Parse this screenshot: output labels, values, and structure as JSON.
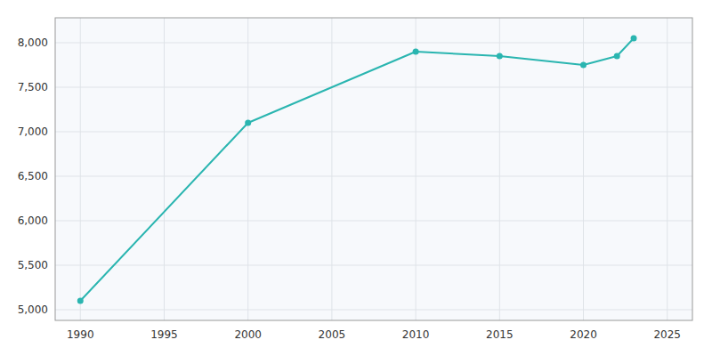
{
  "chart_data": {
    "type": "line",
    "x": [
      1990,
      2000,
      2010,
      2015,
      2020,
      2022,
      2023
    ],
    "values": [
      5100,
      7100,
      7900,
      7850,
      7750,
      7850,
      8050
    ],
    "color": "#2ab5b0",
    "marker": "circle",
    "xlim": [
      1988.5,
      2026.5
    ],
    "xticks": [
      1990,
      1995,
      2000,
      2005,
      2010,
      2015,
      2020,
      2025
    ],
    "ylim": [
      4880,
      8280
    ],
    "yticks": [
      {
        "value": 5000,
        "label": "5,000"
      },
      {
        "value": 5500,
        "label": "5,500"
      },
      {
        "value": 6000,
        "label": "6,000"
      },
      {
        "value": 6500,
        "label": "6,500"
      },
      {
        "value": 7000,
        "label": "7,000"
      },
      {
        "value": 7500,
        "label": "7,500"
      },
      {
        "value": 8000,
        "label": "8,000"
      }
    ],
    "grid": true
  }
}
